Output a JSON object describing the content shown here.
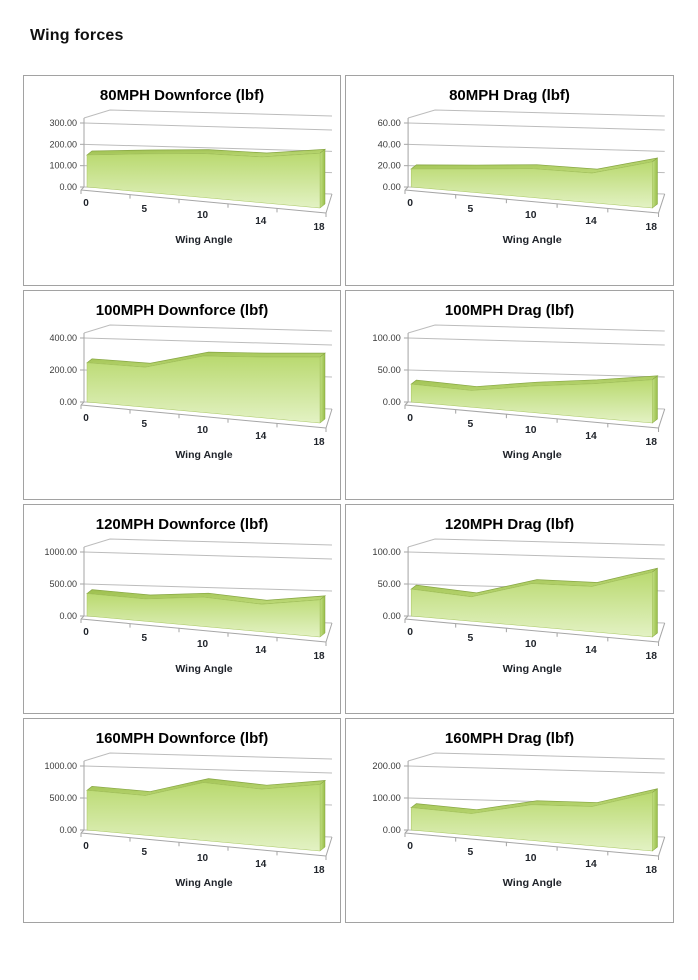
{
  "page": {
    "title": "Wing forces"
  },
  "x_axis": {
    "title": "Wing Angle",
    "categories": [
      "0",
      "5",
      "10",
      "14",
      "18"
    ]
  },
  "colors": {
    "area_front_top": "#b9d96f",
    "area_front_bottom": "#e3f2c4",
    "ridge_dark": "#9dbf4e",
    "ridge_light": "#bcd976",
    "side_light": "#c3e085",
    "side_dark": "#97bd48",
    "outline": "#87a644",
    "grid_line": "#bcbcbc",
    "axis_line": "#a6a6a6",
    "card_border": "#a2a2a2",
    "tick_label": "#3a3a3a",
    "category_label": "#20242b"
  },
  "chart_data": [
    {
      "type": "area",
      "title": "80MPH Downforce (lbf)",
      "xlabel": "Wing Angle",
      "categories": [
        "0",
        "5",
        "10",
        "14",
        "18"
      ],
      "values": [
        150,
        165,
        175,
        170,
        190
      ],
      "yticks": [
        "0.00",
        "100.00",
        "200.00",
        "300.00"
      ],
      "ymax": 300,
      "ylim": [
        0,
        300
      ],
      "grid": true,
      "legend": "none"
    },
    {
      "type": "area",
      "title": "80MPH Drag (lbf)",
      "xlabel": "Wing Angle",
      "categories": [
        "0",
        "5",
        "10",
        "14",
        "18"
      ],
      "values": [
        17,
        20,
        23,
        22,
        32
      ],
      "yticks": [
        "0.00",
        "20.00",
        "40.00",
        "60.00"
      ],
      "ymax": 60,
      "ylim": [
        0,
        60
      ],
      "grid": true,
      "legend": "none"
    },
    {
      "type": "area",
      "title": "100MPH Downforce (lbf)",
      "xlabel": "Wing Angle",
      "categories": [
        "0",
        "5",
        "10",
        "14",
        "18"
      ],
      "values": [
        245,
        230,
        300,
        300,
        305
      ],
      "yticks": [
        "0.00",
        "200.00",
        "400.00"
      ],
      "ymax": 400,
      "ylim": [
        0,
        400
      ],
      "grid": true,
      "legend": "none"
    },
    {
      "type": "area",
      "title": "100MPH Drag (lbf)",
      "xlabel": "Wing Angle",
      "categories": [
        "0",
        "5",
        "10",
        "14",
        "18"
      ],
      "values": [
        28,
        24,
        35,
        42,
        50
      ],
      "yticks": [
        "0.00",
        "50.00",
        "100.00"
      ],
      "ymax": 100,
      "ylim": [
        0,
        100
      ],
      "grid": true,
      "legend": "none"
    },
    {
      "type": "area",
      "title": "120MPH Downforce (lbf)",
      "xlabel": "Wing Angle",
      "categories": [
        "0",
        "5",
        "10",
        "14",
        "18"
      ],
      "values": [
        350,
        320,
        390,
        340,
        430
      ],
      "yticks": [
        "0.00",
        "500.00",
        "1000.00"
      ],
      "ymax": 1000,
      "ylim": [
        0,
        1000
      ],
      "grid": true,
      "legend": "none"
    },
    {
      "type": "area",
      "title": "120MPH Drag (lbf)",
      "xlabel": "Wing Angle",
      "categories": [
        "0",
        "5",
        "10",
        "14",
        "18"
      ],
      "values": [
        42,
        35,
        57,
        56,
        75
      ],
      "yticks": [
        "0.00",
        "50.00",
        "100.00"
      ],
      "ymax": 100,
      "ylim": [
        0,
        100
      ],
      "grid": true,
      "legend": "none"
    },
    {
      "type": "area",
      "title": "160MPH Downforce (lbf)",
      "xlabel": "Wing Angle",
      "categories": [
        "0",
        "5",
        "10",
        "14",
        "18"
      ],
      "values": [
        620,
        570,
        770,
        700,
        770
      ],
      "yticks": [
        "0.00",
        "500.00",
        "1000.00"
      ],
      "ymax": 1000,
      "ylim": [
        0,
        1000
      ],
      "grid": true,
      "legend": "none"
    },
    {
      "type": "area",
      "title": "160MPH Drag (lbf)",
      "xlabel": "Wing Angle",
      "categories": [
        "0",
        "5",
        "10",
        "14",
        "18"
      ],
      "values": [
        70,
        62,
        95,
        97,
        135
      ],
      "yticks": [
        "0.00",
        "100.00",
        "200.00"
      ],
      "ymax": 200,
      "ylim": [
        0,
        200
      ],
      "grid": true,
      "legend": "none"
    }
  ]
}
